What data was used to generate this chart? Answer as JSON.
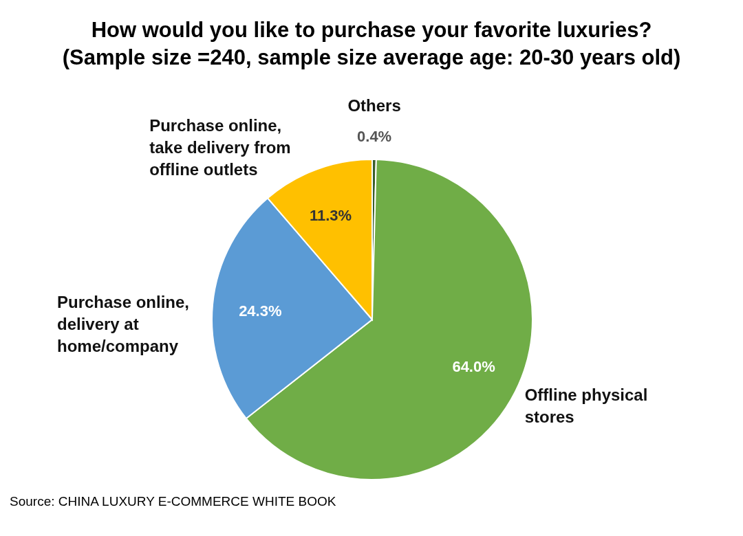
{
  "chart_data": {
    "type": "pie",
    "title": "How would you like to purchase your favorite luxuries?",
    "subtitle": "(Sample size =240, sample size average age: 20-30 years old)",
    "categories": [
      "Others",
      "Offline physical stores",
      "Purchase online, delivery at home/company",
      "Purchase online, take delivery from offline outlets"
    ],
    "values": [
      0.4,
      64.0,
      24.3,
      11.3
    ],
    "colors": [
      "#3b5e2b",
      "#70ad47",
      "#5b9bd5",
      "#ffc000"
    ],
    "value_labels": [
      "0.4%",
      "64.0%",
      "24.3%",
      "11.3%"
    ],
    "annotations": [
      "Source: CHINA LUXURY E-COMMERCE WHITE BOOK"
    ]
  }
}
